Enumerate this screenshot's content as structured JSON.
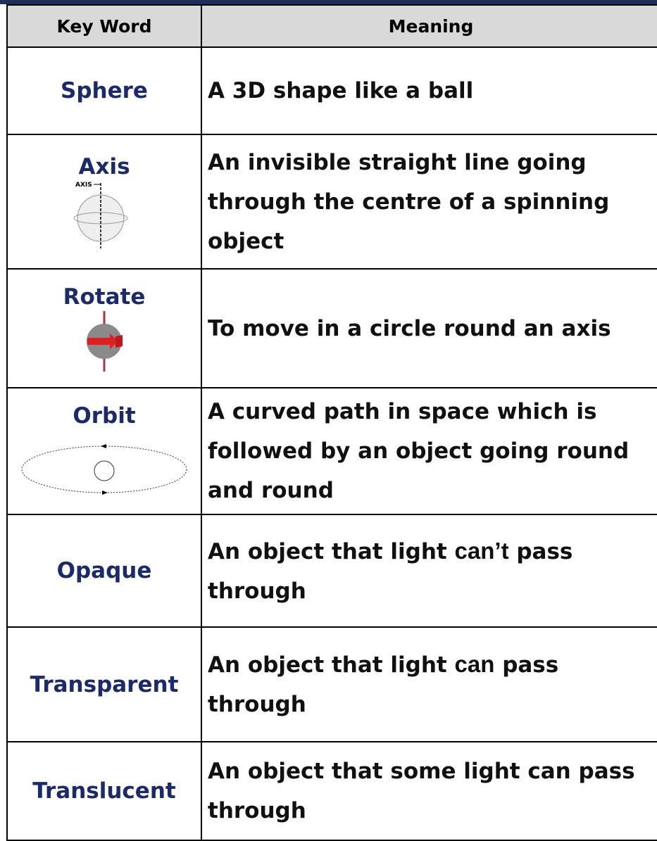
{
  "table": {
    "header": [
      "Key Word",
      "Meaning"
    ],
    "rows": [
      {
        "keyword": "Sphere",
        "meaning": [
          "A 3D shape like a ball"
        ]
      },
      {
        "keyword": "Axis",
        "icon_label": "AXIS",
        "meaning": [
          "An invisible straight line going through the centre of a spinning object"
        ]
      },
      {
        "keyword": "Rotate",
        "meaning": [
          "To move in a circle round an axis"
        ]
      },
      {
        "keyword": "Orbit",
        "meaning": [
          "A curved path in space  which is followed by an object going round and round"
        ]
      },
      {
        "keyword": "Opaque",
        "meaning": [
          "An object that light ",
          "can’t",
          " pass through"
        ]
      },
      {
        "keyword": "Transparent",
        "meaning": [
          "An object that light ",
          "can",
          " pass through"
        ]
      },
      {
        "keyword": "Translucent",
        "meaning": [
          "An object that some light can pass through"
        ]
      }
    ]
  }
}
